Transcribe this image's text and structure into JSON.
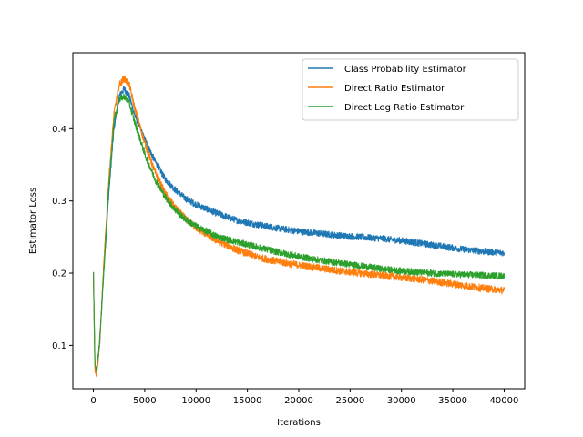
{
  "chart_data": {
    "type": "line",
    "title": "",
    "xlabel": "Iterations",
    "ylabel": "Estimator Loss",
    "xlim": [
      -2000,
      42000
    ],
    "ylim": [
      0.04,
      0.505
    ],
    "xticks": [
      0,
      5000,
      10000,
      15000,
      20000,
      25000,
      30000,
      35000,
      40000
    ],
    "xtick_labels": [
      "0",
      "5000",
      "10000",
      "15000",
      "20000",
      "25000",
      "30000",
      "35000",
      "40000"
    ],
    "yticks": [
      0.1,
      0.2,
      0.3,
      0.4
    ],
    "ytick_labels": [
      "0.1",
      "0.2",
      "0.3",
      "0.4"
    ],
    "grid": false,
    "legend_position": "top-right",
    "series": [
      {
        "name": "Class Probability Estimator",
        "color": "#1f77b4",
        "noise": 0.0045,
        "x": [
          0,
          150,
          300,
          600,
          1000,
          1500,
          2000,
          2500,
          3000,
          3500,
          4000,
          5000,
          6000,
          7000,
          8000,
          9000,
          10000,
          12000,
          14000,
          16000,
          18000,
          20000,
          22000,
          24000,
          26000,
          28000,
          30000,
          32000,
          34000,
          36000,
          38000,
          40000
        ],
        "y": [
          0.2,
          0.07,
          0.06,
          0.1,
          0.2,
          0.31,
          0.4,
          0.445,
          0.455,
          0.445,
          0.42,
          0.385,
          0.355,
          0.33,
          0.315,
          0.303,
          0.295,
          0.283,
          0.273,
          0.267,
          0.262,
          0.258,
          0.255,
          0.252,
          0.25,
          0.248,
          0.245,
          0.241,
          0.237,
          0.233,
          0.23,
          0.228
        ]
      },
      {
        "name": "Direct Ratio Estimator",
        "color": "#ff7f0e",
        "noise": 0.005,
        "x": [
          0,
          150,
          300,
          600,
          1000,
          1500,
          2000,
          2500,
          3000,
          3500,
          4000,
          5000,
          6000,
          7000,
          8000,
          9000,
          10000,
          12000,
          14000,
          16000,
          18000,
          20000,
          22000,
          24000,
          26000,
          28000,
          30000,
          32000,
          34000,
          36000,
          38000,
          40000
        ],
        "y": [
          0.2,
          0.065,
          0.058,
          0.1,
          0.21,
          0.33,
          0.42,
          0.46,
          0.47,
          0.46,
          0.43,
          0.38,
          0.34,
          0.31,
          0.29,
          0.275,
          0.263,
          0.245,
          0.232,
          0.222,
          0.216,
          0.211,
          0.207,
          0.203,
          0.2,
          0.197,
          0.194,
          0.191,
          0.187,
          0.183,
          0.179,
          0.176
        ]
      },
      {
        "name": "Direct Log Ratio Estimator",
        "color": "#2ca02c",
        "noise": 0.0045,
        "x": [
          0,
          150,
          300,
          600,
          1000,
          1500,
          2000,
          2500,
          3000,
          3500,
          4000,
          5000,
          6000,
          7000,
          8000,
          9000,
          10000,
          12000,
          14000,
          16000,
          18000,
          20000,
          22000,
          24000,
          26000,
          28000,
          30000,
          32000,
          34000,
          36000,
          38000,
          40000
        ],
        "y": [
          0.2,
          0.075,
          0.065,
          0.105,
          0.2,
          0.32,
          0.41,
          0.44,
          0.445,
          0.435,
          0.41,
          0.365,
          0.33,
          0.305,
          0.287,
          0.274,
          0.265,
          0.251,
          0.243,
          0.236,
          0.229,
          0.223,
          0.218,
          0.214,
          0.21,
          0.206,
          0.203,
          0.201,
          0.199,
          0.198,
          0.197,
          0.196
        ]
      }
    ]
  }
}
